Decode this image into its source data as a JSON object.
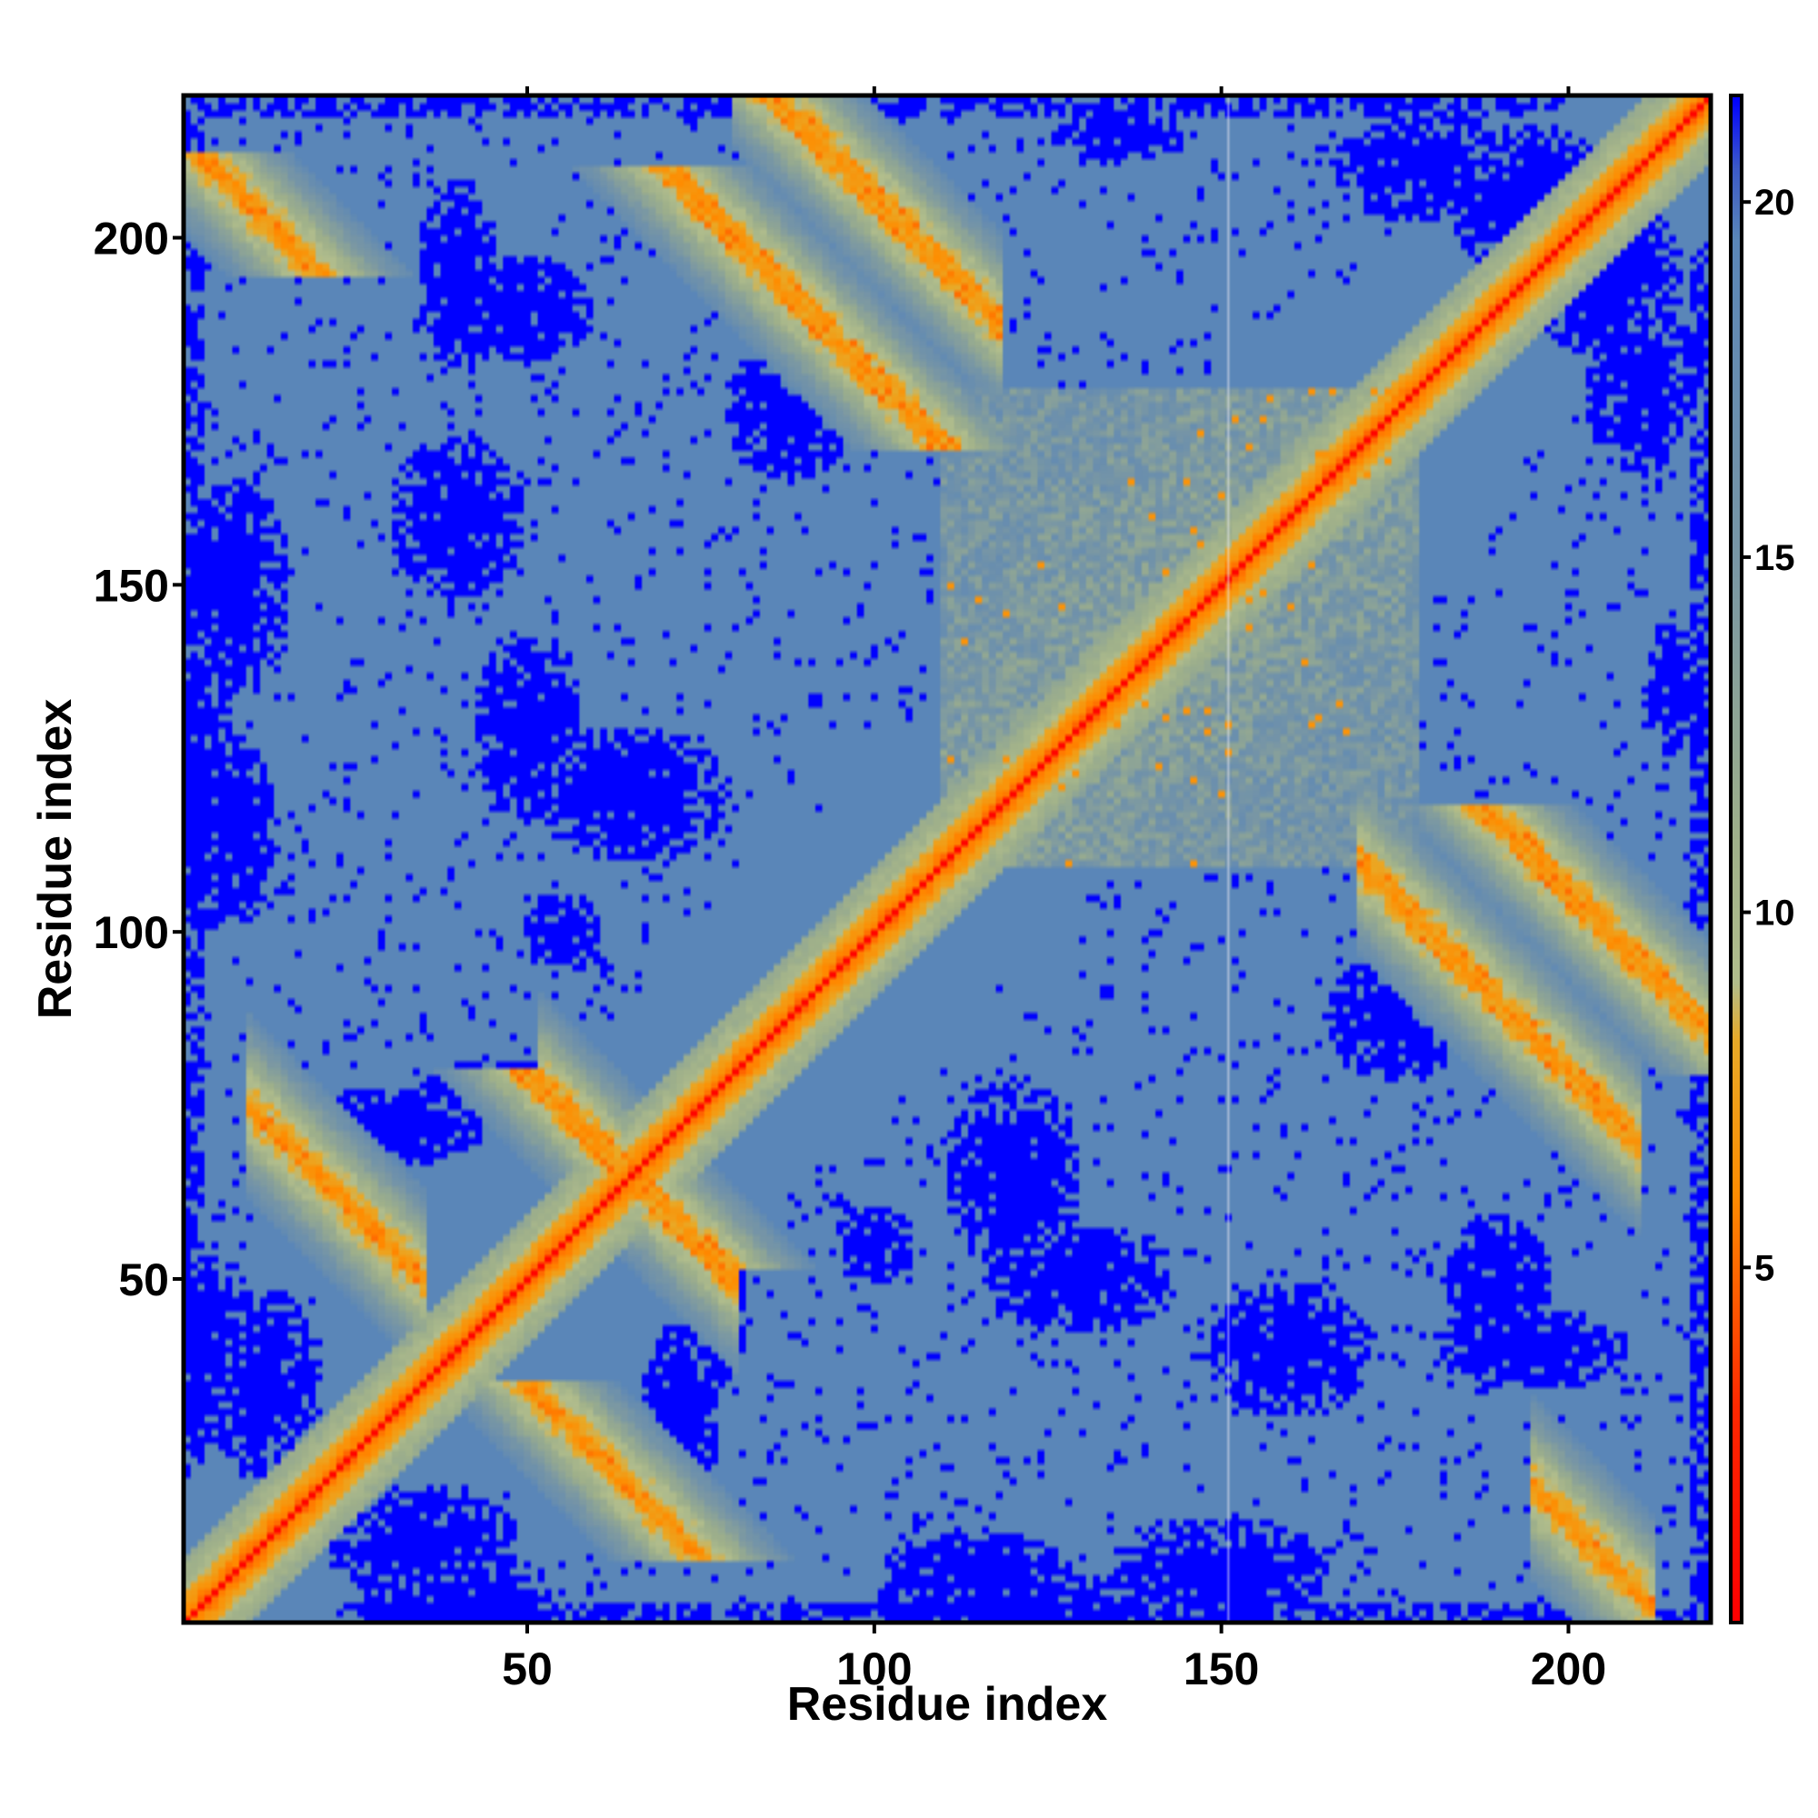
{
  "chart_data": {
    "type": "heatmap",
    "title": "",
    "xlabel": "Residue index",
    "ylabel": "Residue index",
    "x_ticks": [
      50,
      100,
      150,
      200
    ],
    "y_ticks": [
      50,
      100,
      150,
      200
    ],
    "colorbar_ticks": [
      5,
      10,
      15,
      20
    ],
    "xlim": [
      1,
      220
    ],
    "ylim": [
      1,
      220
    ],
    "value_range": [
      0,
      21.5
    ],
    "n_residues": 220,
    "colors": {
      "diagonal": "#ff0000",
      "near": "#ff8c00",
      "mid": "#9fb08a",
      "background": "#5a86b8",
      "far": "#0000ff"
    },
    "structure": {
      "diagonal": "residue i vs i, distance ~0",
      "antiparallel_bands": [
        {
          "center_sum": 85,
          "range_i": [
            10,
            35
          ]
        },
        {
          "center_sum": 130,
          "range_i": [
            52,
            80
          ]
        },
        {
          "center_sum": 306,
          "range_i": [
            80,
            118
          ]
        },
        {
          "center_sum": 255,
          "range_i": [
            2,
            12
          ]
        },
        {
          "center_sum": 280,
          "range_i": [
            170,
            210
          ]
        },
        {
          "center_sum": 215,
          "range_i": [
            195,
            212
          ]
        }
      ],
      "cluster_region": {
        "i_range": [
          110,
          178
        ],
        "j_range": [
          110,
          178
        ]
      },
      "gap_column": 151
    }
  }
}
